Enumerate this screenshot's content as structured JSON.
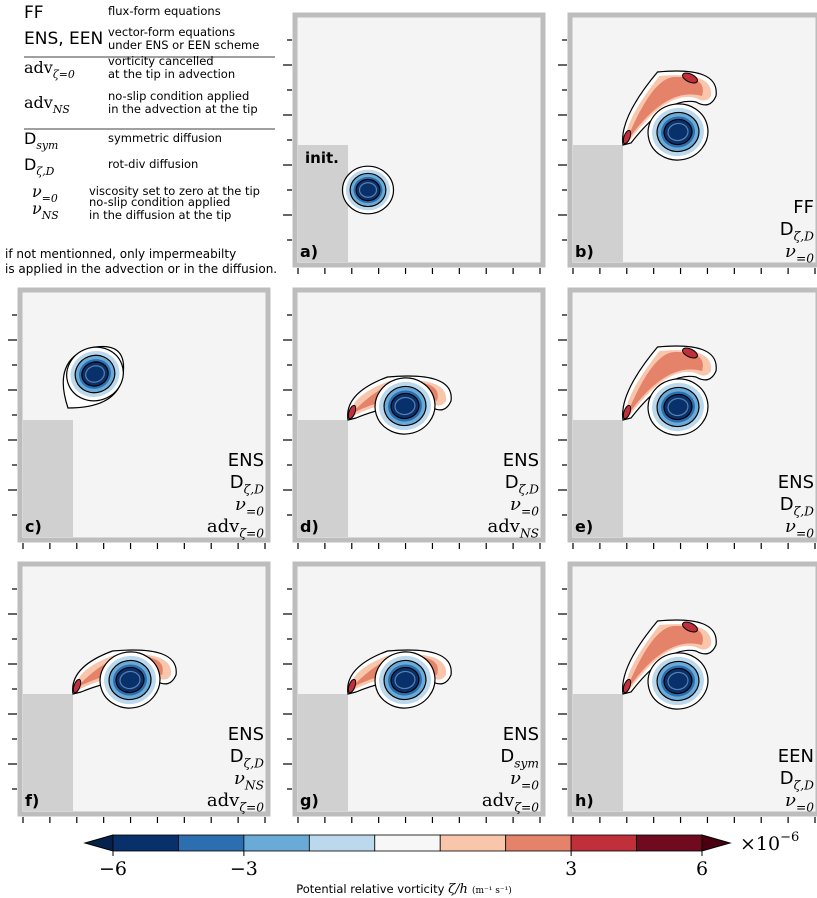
{
  "legend": {
    "rows": [
      {
        "key": "FF",
        "desc": [
          "flux-form equations"
        ]
      },
      {
        "key": "ENS, EEN",
        "desc": [
          "vector-form equations",
          "under ENS or EEN scheme"
        ]
      },
      {
        "key": "adv",
        "sub": "ζ=0",
        "desc": [
          "vorticity cancelled",
          "at the tip in advection"
        ]
      },
      {
        "key": "adv",
        "sub": "NS",
        "desc": [
          "no-slip condition applied",
          "in the advection at the tip"
        ]
      },
      {
        "key": "D",
        "sub": "sym",
        "desc": [
          "symmetric diffusion"
        ]
      },
      {
        "key": "D",
        "sub": "ζ,D",
        "desc": [
          "rot-div diffusion"
        ]
      },
      {
        "key": "ν",
        "sub": "=0",
        "desc": [
          "viscosity set to zero at the tip"
        ]
      },
      {
        "key": "ν",
        "sub": "NS",
        "desc": [
          "no-slip condition applied",
          "in the diffusion at the tip"
        ]
      }
    ],
    "footnote": [
      "if not mentionned, only impermeabilty",
      "is applied in the advection or in the diffusion."
    ]
  },
  "colors": {
    "levels": [
      "#08306b",
      "#2c6fb0",
      "#6aaad6",
      "#bcd8ec",
      "#f7f7f7",
      "#f9c5ab",
      "#e4826a",
      "#c0303a",
      "#6f0a1f"
    ],
    "land": "#d0d0d0",
    "water": "#f4f4f4",
    "frame": "#bdbdbd"
  },
  "chart_data": {
    "type": "contour",
    "panel_init_label": "init.",
    "panels": [
      {
        "id": "a)",
        "vortex": "initial",
        "labels": []
      },
      {
        "id": "b)",
        "vortex": "filament_full",
        "labels": [
          {
            "t": "FF"
          },
          {
            "t": "D",
            "s": "ζ,D"
          },
          {
            "t": "ν",
            "s": "=0"
          }
        ]
      },
      {
        "id": "c)",
        "vortex": "no_filament",
        "labels": [
          {
            "t": "ENS"
          },
          {
            "t": "D",
            "s": "ζ,D"
          },
          {
            "t": "ν",
            "s": "=0"
          },
          {
            "t": "adv",
            "s": "ζ=0"
          }
        ]
      },
      {
        "id": "d)",
        "vortex": "filament_long",
        "labels": [
          {
            "t": "ENS"
          },
          {
            "t": "D",
            "s": "ζ,D"
          },
          {
            "t": "ν",
            "s": "=0"
          },
          {
            "t": "adv",
            "s": "NS"
          }
        ]
      },
      {
        "id": "e)",
        "vortex": "filament_full",
        "labels": [
          {
            "t": "ENS"
          },
          {
            "t": "D",
            "s": "ζ,D"
          },
          {
            "t": "ν",
            "s": "=0"
          }
        ]
      },
      {
        "id": "f)",
        "vortex": "filament_long",
        "labels": [
          {
            "t": "ENS"
          },
          {
            "t": "D",
            "s": "ζ,D"
          },
          {
            "t": "ν",
            "s": "NS"
          },
          {
            "t": "adv",
            "s": "ζ=0"
          }
        ]
      },
      {
        "id": "g)",
        "vortex": "filament_long",
        "labels": [
          {
            "t": "ENS"
          },
          {
            "t": "D",
            "s": "sym"
          },
          {
            "t": "ν",
            "s": "=0"
          },
          {
            "t": "adv",
            "s": "ζ=0"
          }
        ]
      },
      {
        "id": "h)",
        "vortex": "filament_full",
        "labels": [
          {
            "t": "EEN"
          },
          {
            "t": "D",
            "s": "ζ,D"
          },
          {
            "t": "ν",
            "s": "=0"
          }
        ]
      }
    ],
    "colorbar": {
      "vmin": -6,
      "vmax": 6,
      "n_levels": 9,
      "extend": "both",
      "ticks": [
        {
          "v": -6,
          "label": "−6"
        },
        {
          "v": -3,
          "label": "−3"
        },
        {
          "v": 3,
          "label": "3"
        },
        {
          "v": 6,
          "label": "6"
        }
      ],
      "multiplier": "×10",
      "multiplier_exp": "−6",
      "label": "Potential relative vorticity",
      "label_math": "ζ/h",
      "units": "(m⁻¹ s⁻¹)"
    }
  }
}
